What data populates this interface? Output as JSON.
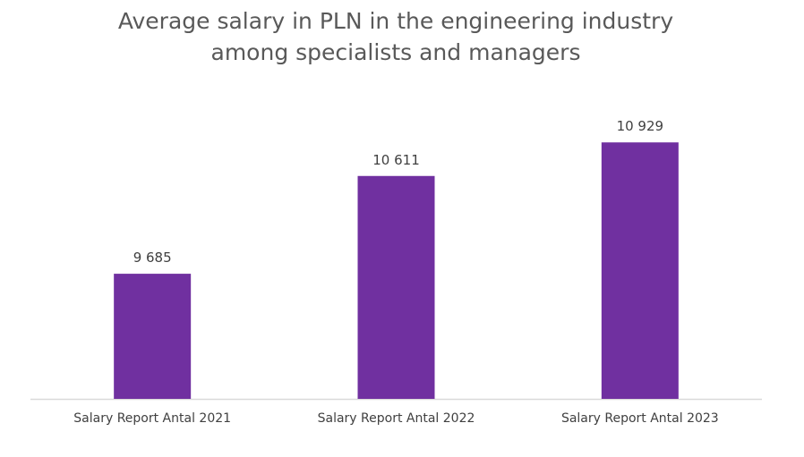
{
  "chart_data": {
    "type": "bar",
    "title_lines": [
      "Average salary in PLN in the engineering industry",
      "among specialists and managers"
    ],
    "categories": [
      "Salary Report Antal 2021",
      "Salary Report Antal 2022",
      "Salary Report Antal 2023"
    ],
    "values": [
      9685,
      10611,
      10929
    ],
    "value_labels": [
      "9 685",
      "10 611",
      "10 929"
    ],
    "xlabel": "",
    "ylabel": "",
    "ylim": [
      8500,
      11600
    ],
    "grid": false,
    "legend": "none",
    "bar_color": "#7030A0",
    "axis_color": "#D9D9D9"
  }
}
